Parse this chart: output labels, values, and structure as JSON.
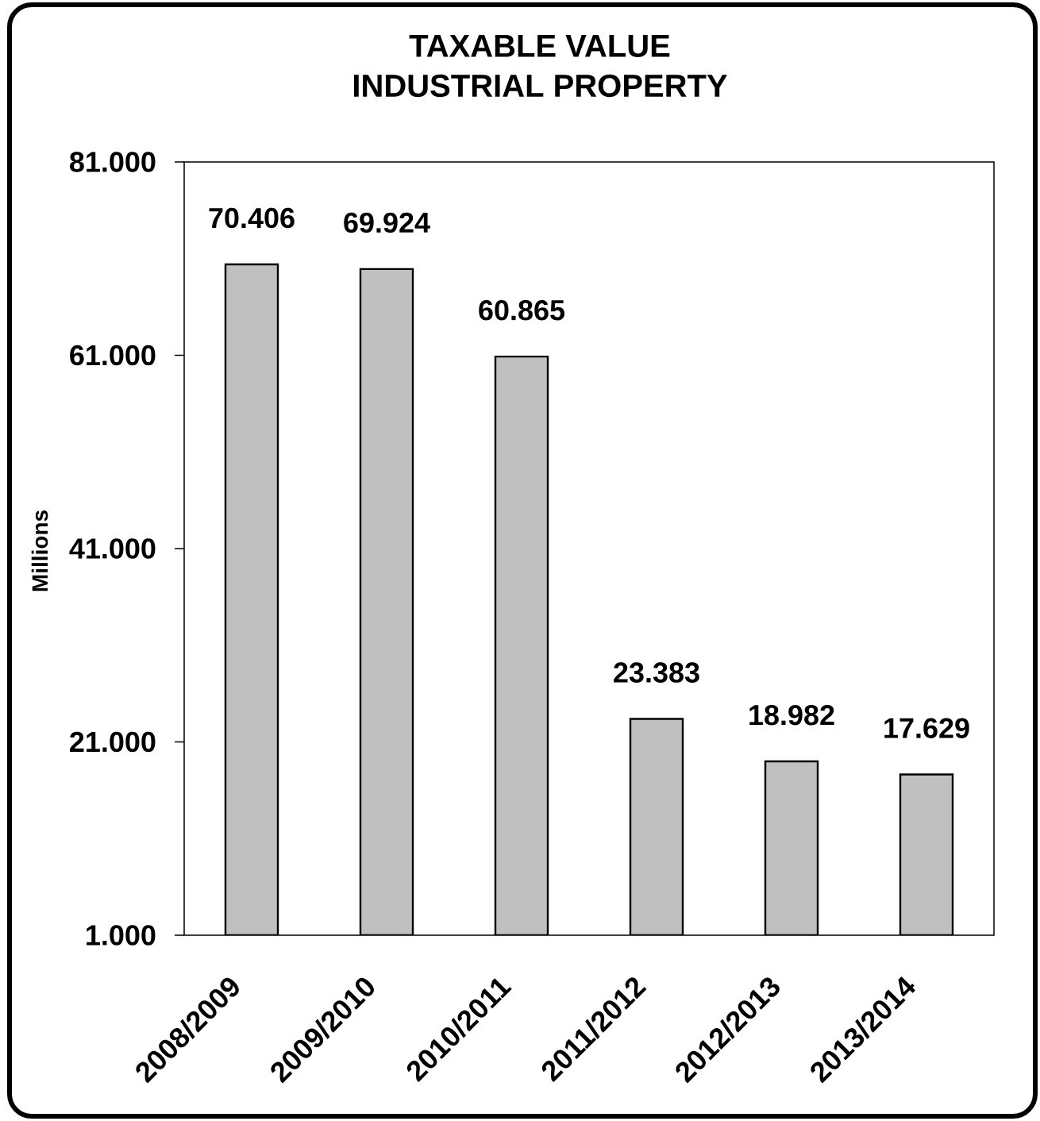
{
  "chart_data": {
    "type": "bar",
    "title": "TAXABLE VALUE",
    "subtitle": "INDUSTRIAL PROPERTY",
    "ylabel": "Millions",
    "categories": [
      "2008/2009",
      "2009/2010",
      "2010/2011",
      "2011/2012",
      "2012/2013",
      "2013/2014"
    ],
    "values": [
      70.406,
      69.924,
      60.865,
      23.383,
      18.982,
      17.629
    ],
    "value_labels": [
      "70.406",
      "69.924",
      "60.865",
      "23.383",
      "18.982",
      "17.629"
    ],
    "color": "#c0c0c0",
    "ylim": [
      1,
      81
    ],
    "yticks": [
      {
        "value": 1,
        "label": "1.000"
      },
      {
        "value": 21,
        "label": "21.000"
      },
      {
        "value": 41,
        "label": "41.000"
      },
      {
        "value": 61,
        "label": "61.000"
      },
      {
        "value": 81,
        "label": "81.000"
      }
    ]
  }
}
